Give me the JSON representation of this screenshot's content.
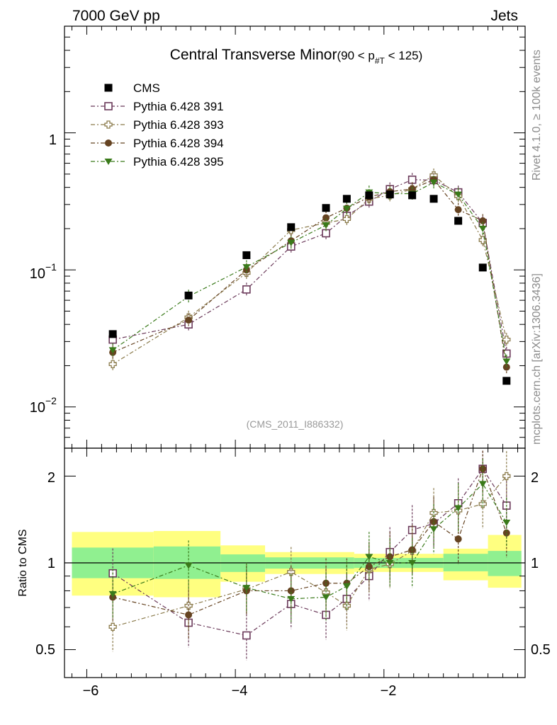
{
  "header": {
    "beam": "7000 GeV pp",
    "category": "Jets",
    "title_main": "Central Transverse Minor",
    "title_range_prefix": "(90 < p",
    "title_range_sub": "#T",
    "title_range_suffix": " < 125)",
    "side_top": "Rivet 4.1.0, ≥ 100k events",
    "side_bottom": "mcplots.cern.ch [arXiv:1306.3436]",
    "watermark": "(CMS_2011_I886332)"
  },
  "chart_data": {
    "type": "scatter",
    "main_axis": {
      "scale": "log",
      "ylim": [
        0.005,
        6.0
      ],
      "ticklabels": [
        {
          "value": 1,
          "base": "1",
          "exp": ""
        },
        {
          "value": 0.1,
          "base": "10",
          "exp": "−1"
        },
        {
          "value": 0.01,
          "base": "10",
          "exp": "−2"
        }
      ]
    },
    "ratio_axis": {
      "scale": "log",
      "ylim": [
        0.4,
        2.5
      ],
      "ylabel": "Ratio to CMS",
      "ticklabels_left": [
        "2",
        "1",
        "0.5"
      ],
      "ticklabels_right": [
        "2",
        "1",
        "0.5"
      ],
      "tickvalues": [
        2,
        1,
        0.5
      ]
    },
    "x_axis": {
      "xlim": [
        -6.3,
        -0.1
      ],
      "ticklabels": [
        "−6",
        "−4",
        "−2"
      ],
      "tickvalues": [
        -6,
        -4,
        -2
      ]
    },
    "bands": [
      {
        "xlo": -6.2,
        "xhi": -5.1,
        "y1lo": 0.885,
        "y1hi": 1.13,
        "y2lo": 0.77,
        "y2hi": 1.28
      },
      {
        "xlo": -5.1,
        "xhi": -4.2,
        "y1lo": 0.88,
        "y1hi": 1.14,
        "y2lo": 0.76,
        "y2hi": 1.29
      },
      {
        "xlo": -4.2,
        "xhi": -3.6,
        "y1lo": 0.93,
        "y1hi": 1.07,
        "y2lo": 0.86,
        "y2hi": 1.15
      },
      {
        "xlo": -3.6,
        "xhi": -2.4,
        "y1lo": 0.955,
        "y1hi": 1.045,
        "y2lo": 0.915,
        "y2hi": 1.09
      },
      {
        "xlo": -2.4,
        "xhi": -1.2,
        "y1lo": 0.96,
        "y1hi": 1.04,
        "y2lo": 0.93,
        "y2hi": 1.075
      },
      {
        "xlo": -1.2,
        "xhi": -0.6,
        "y1lo": 0.935,
        "y1hi": 1.075,
        "y2lo": 0.87,
        "y2hi": 1.12
      },
      {
        "xlo": -0.6,
        "xhi": -0.15,
        "y1lo": 0.9,
        "y1hi": 1.1,
        "y2lo": 0.82,
        "y2hi": 1.25
      }
    ],
    "x": [
      -5.65,
      -4.63,
      -3.85,
      -3.25,
      -2.78,
      -2.5,
      -2.2,
      -1.92,
      -1.62,
      -1.33,
      -1.0,
      -0.67,
      -0.35
    ],
    "data": {
      "name": "CMS",
      "color": "#000000",
      "values": [
        0.034,
        0.065,
        0.128,
        0.205,
        0.283,
        0.33,
        0.35,
        0.355,
        0.35,
        0.33,
        0.228,
        0.104,
        0.0155
      ]
    },
    "series": [
      {
        "name": "Pythia 6.428 391",
        "color": "#6b3a5a",
        "marker": "open-square",
        "values": [
          0.031,
          0.04,
          0.072,
          0.148,
          0.185,
          0.248,
          0.315,
          0.388,
          0.455,
          0.452,
          0.368,
          0.22,
          0.0245
        ],
        "ratio": [
          0.92,
          0.62,
          0.56,
          0.72,
          0.66,
          0.75,
          0.9,
          1.09,
          1.3,
          1.37,
          1.61,
          2.12,
          1.58
        ]
      },
      {
        "name": "Pythia 6.428 393",
        "color": "#8a7a4a",
        "marker": "open-cross",
        "values": [
          0.0205,
          0.045,
          0.095,
          0.195,
          0.22,
          0.235,
          0.33,
          0.35,
          0.388,
          0.49,
          0.345,
          0.165,
          0.031
        ],
        "ratio": [
          0.6,
          0.71,
          0.81,
          0.93,
          0.79,
          0.71,
          0.95,
          0.99,
          1.1,
          1.49,
          1.52,
          1.6,
          2.0
        ]
      },
      {
        "name": "Pythia 6.428 394",
        "color": "#654321",
        "marker": "filled-circle",
        "values": [
          0.025,
          0.043,
          0.1,
          0.163,
          0.24,
          0.282,
          0.34,
          0.372,
          0.39,
          0.455,
          0.275,
          0.228,
          0.0195
        ],
        "ratio": [
          0.76,
          0.66,
          0.8,
          0.8,
          0.85,
          0.85,
          0.97,
          1.05,
          1.11,
          1.39,
          1.21,
          2.12,
          1.27
        ]
      },
      {
        "name": "Pythia 6.428 395",
        "color": "#3a7a1a",
        "marker": "filled-triangle",
        "values": [
          0.026,
          0.064,
          0.105,
          0.158,
          0.212,
          0.28,
          0.368,
          0.36,
          0.36,
          0.435,
          0.355,
          0.2,
          0.0215
        ],
        "ratio": [
          0.78,
          0.98,
          0.82,
          0.75,
          0.76,
          0.83,
          1.05,
          1.0,
          1.0,
          1.31,
          1.55,
          1.88,
          1.38
        ]
      }
    ]
  }
}
